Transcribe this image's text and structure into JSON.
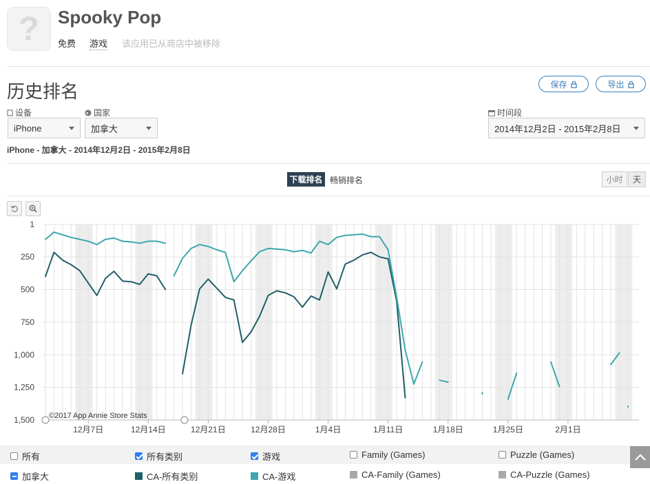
{
  "app": {
    "name": "Spooky Pop",
    "price": "免费",
    "genre": "游戏",
    "status": "该应用已从商店中被移除",
    "icon": "question-mark-icon"
  },
  "page": {
    "title": "历史排名"
  },
  "actions": {
    "save": "保存",
    "export": "导出"
  },
  "filters": {
    "device_label": "设备",
    "device_value": "iPhone",
    "country_label": "国家",
    "country_value": "加拿大",
    "period_label": "时间段",
    "period_value": "2014年12月2日 - 2015年2月8日"
  },
  "summary": "iPhone - 加拿大 - 2014年12月2日 - 2015年2月8日",
  "tabs": {
    "active": "下载排名",
    "other": "畅销排名"
  },
  "granularity": {
    "hour": "小时",
    "day": "天"
  },
  "watermark": "©2017 App Annie Store Stats",
  "legend": {
    "row1": [
      {
        "label": "所有",
        "checked": false
      },
      {
        "label": "所有类别",
        "checked": true
      },
      {
        "label": "游戏",
        "checked": true
      },
      {
        "label": "Family (Games)",
        "checked": false
      },
      {
        "label": "Puzzle (Games)",
        "checked": false
      }
    ],
    "row2": [
      {
        "label": "加拿大",
        "color": "#2f80ed"
      },
      {
        "label": "CA-所有类别",
        "color": "#1f5f66"
      },
      {
        "label": "CA-游戏",
        "color": "#3aa8ad"
      },
      {
        "label": "CA-Family (Games)",
        "color": "#a8a8a8"
      },
      {
        "label": "CA-Puzzle (Games)",
        "color": "#a8a8a8"
      }
    ]
  },
  "chart_data": {
    "type": "line",
    "x_start": "2014-12-02",
    "x_end": "2015-02-08",
    "y_ticks": [
      "1",
      "250",
      "500",
      "750",
      "1,000",
      "1,250",
      "1,500"
    ],
    "y_range": [
      1,
      1500
    ],
    "y_inverted": true,
    "x_ticks": [
      {
        "date": "2014-12-07",
        "label": "12月7日"
      },
      {
        "date": "2014-12-14",
        "label": "12月14日"
      },
      {
        "date": "2014-12-21",
        "label": "12月21日"
      },
      {
        "date": "2014-12-28",
        "label": "12月28日"
      },
      {
        "date": "2015-01-04",
        "label": "1月4日"
      },
      {
        "date": "2015-01-11",
        "label": "1月11日"
      },
      {
        "date": "2015-01-18",
        "label": "1月18日"
      },
      {
        "date": "2015-01-25",
        "label": "1月25日"
      },
      {
        "date": "2015-02-01",
        "label": "2月1日"
      }
    ],
    "weekend_shading": true,
    "grid": true,
    "series": [
      {
        "name": "CA-所有类别",
        "color": "#1f5f66",
        "segments": [
          [
            [
              "2014-12-02",
              400
            ],
            [
              "2014-12-03",
              215
            ],
            [
              "2014-12-04",
              275
            ],
            [
              "2014-12-05",
              310
            ],
            [
              "2014-12-06",
              355
            ],
            [
              "2014-12-07",
              450
            ],
            [
              "2014-12-08",
              545
            ],
            [
              "2014-12-09",
              415
            ],
            [
              "2014-12-10",
              360
            ],
            [
              "2014-12-11",
              435
            ],
            [
              "2014-12-12",
              440
            ],
            [
              "2014-12-13",
              460
            ],
            [
              "2014-12-14",
              380
            ],
            [
              "2014-12-15",
              395
            ],
            [
              "2014-12-16",
              500
            ]
          ],
          [
            [
              "2014-12-18",
              1145
            ],
            [
              "2014-12-19",
              775
            ],
            [
              "2014-12-20",
              495
            ],
            [
              "2014-12-21",
              420
            ],
            [
              "2014-12-22",
              490
            ],
            [
              "2014-12-23",
              560
            ],
            [
              "2014-12-24",
              580
            ],
            [
              "2014-12-25",
              905
            ],
            [
              "2014-12-26",
              825
            ],
            [
              "2014-12-27",
              705
            ],
            [
              "2014-12-28",
              545
            ],
            [
              "2014-12-29",
              510
            ],
            [
              "2014-12-30",
              525
            ],
            [
              "2014-12-31",
              555
            ],
            [
              "2015-01-01",
              635
            ],
            [
              "2015-01-02",
              550
            ],
            [
              "2015-01-03",
              580
            ],
            [
              "2015-01-04",
              365
            ],
            [
              "2015-01-05",
              495
            ],
            [
              "2015-01-06",
              305
            ],
            [
              "2015-01-07",
              275
            ],
            [
              "2015-01-08",
              235
            ],
            [
              "2015-01-09",
              215
            ],
            [
              "2015-01-10",
              250
            ],
            [
              "2015-01-11",
              265
            ],
            [
              "2015-01-12",
              590
            ],
            [
              "2015-01-13",
              1330
            ]
          ]
        ]
      },
      {
        "name": "CA-游戏",
        "color": "#3aa8ad",
        "segments": [
          [
            [
              "2014-12-02",
              115
            ],
            [
              "2014-12-03",
              60
            ],
            [
              "2014-12-04",
              80
            ],
            [
              "2014-12-05",
              100
            ],
            [
              "2014-12-06",
              115
            ],
            [
              "2014-12-07",
              130
            ],
            [
              "2014-12-08",
              155
            ],
            [
              "2014-12-09",
              115
            ],
            [
              "2014-12-10",
              105
            ],
            [
              "2014-12-11",
              130
            ],
            [
              "2014-12-12",
              135
            ],
            [
              "2014-12-13",
              145
            ],
            [
              "2014-12-14",
              130
            ],
            [
              "2014-12-15",
              130
            ],
            [
              "2014-12-16",
              145
            ]
          ],
          [
            [
              "2014-12-17",
              395
            ],
            [
              "2014-12-18",
              260
            ],
            [
              "2014-12-19",
              185
            ],
            [
              "2014-12-20",
              155
            ],
            [
              "2014-12-21",
              170
            ],
            [
              "2014-12-22",
              195
            ],
            [
              "2014-12-23",
              215
            ],
            [
              "2014-12-24",
              440
            ],
            [
              "2014-12-25",
              355
            ],
            [
              "2014-12-26",
              280
            ],
            [
              "2014-12-27",
              210
            ],
            [
              "2014-12-28",
              185
            ],
            [
              "2014-12-29",
              190
            ],
            [
              "2014-12-30",
              195
            ],
            [
              "2014-12-31",
              210
            ],
            [
              "2015-01-01",
              200
            ],
            [
              "2015-01-02",
              220
            ],
            [
              "2015-01-03",
              130
            ],
            [
              "2015-01-04",
              155
            ],
            [
              "2015-01-05",
              100
            ],
            [
              "2015-01-06",
              85
            ],
            [
              "2015-01-07",
              80
            ],
            [
              "2015-01-08",
              75
            ],
            [
              "2015-01-09",
              95
            ],
            [
              "2015-01-10",
              95
            ],
            [
              "2015-01-11",
              195
            ],
            [
              "2015-01-12",
              560
            ],
            [
              "2015-01-13",
              965
            ],
            [
              "2015-01-14",
              1225
            ],
            [
              "2015-01-15",
              1055
            ]
          ],
          [
            [
              "2015-01-17",
              1195
            ],
            [
              "2015-01-18",
              1210
            ]
          ],
          [
            [
              "2015-01-22",
              1290
            ],
            [
              "2015-01-22",
              1300
            ]
          ],
          [
            [
              "2015-01-25",
              1340
            ],
            [
              "2015-01-26",
              1140
            ]
          ],
          [
            [
              "2015-01-30",
              1055
            ],
            [
              "2015-01-31",
              1245
            ]
          ],
          [
            [
              "2015-02-06",
              1075
            ],
            [
              "2015-02-07",
              985
            ]
          ],
          [
            [
              "2015-02-08",
              1395
            ],
            [
              "2015-02-08",
              1400
            ]
          ]
        ]
      }
    ]
  }
}
